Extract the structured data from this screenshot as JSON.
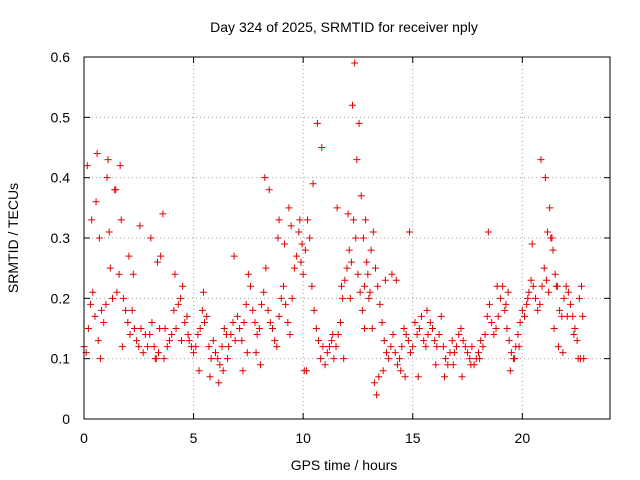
{
  "chart_data": {
    "type": "scatter",
    "title": "Day 324 of 2025, SRMTID for receiver nply",
    "xlabel": "GPS time / hours",
    "ylabel": "SRMTID / TECUs",
    "xlim": [
      0,
      24
    ],
    "ylim": [
      0,
      0.6
    ],
    "x_ticks": [
      0,
      5,
      10,
      15,
      20
    ],
    "x_tick_labels": [
      "0",
      "5",
      "10",
      "15",
      "20"
    ],
    "y_ticks": [
      0,
      0.1,
      0.2,
      0.3,
      0.4,
      0.5,
      0.6
    ],
    "y_tick_labels": [
      "0",
      "0.1",
      "0.2",
      "0.3",
      "0.4",
      "0.5",
      "0.6"
    ],
    "grid": true,
    "marker": "+",
    "series": [
      {
        "name": "SRMTID",
        "color": "#e00000",
        "x": [
          0.0,
          0.1,
          0.2,
          0.3,
          0.4,
          0.5,
          0.6,
          0.7,
          0.8,
          0.9,
          1.0,
          1.1,
          1.2,
          1.3,
          1.4,
          1.5,
          1.6,
          1.7,
          1.8,
          1.9,
          2.0,
          2.1,
          2.2,
          2.3,
          2.4,
          2.5,
          2.6,
          2.7,
          2.8,
          2.9,
          3.0,
          3.1,
          3.2,
          3.3,
          3.4,
          3.5,
          3.6,
          3.7,
          3.8,
          3.9,
          4.0,
          4.1,
          4.2,
          4.3,
          4.4,
          4.5,
          4.6,
          4.7,
          4.8,
          4.9,
          5.0,
          5.1,
          5.2,
          5.3,
          5.4,
          5.5,
          5.6,
          5.7,
          5.8,
          5.9,
          6.0,
          6.1,
          6.2,
          6.3,
          6.4,
          6.5,
          6.6,
          6.7,
          6.8,
          6.9,
          7.0,
          7.1,
          7.2,
          7.3,
          7.4,
          7.5,
          7.6,
          7.7,
          7.8,
          7.9,
          8.0,
          8.1,
          8.2,
          8.3,
          8.4,
          8.5,
          8.6,
          8.7,
          8.8,
          8.9,
          9.0,
          9.1,
          9.2,
          9.3,
          9.4,
          9.5,
          9.6,
          9.7,
          9.8,
          9.9,
          10.0,
          10.1,
          10.2,
          10.3,
          10.4,
          10.5,
          10.6,
          10.7,
          10.8,
          10.9,
          11.0,
          11.1,
          11.2,
          11.3,
          11.4,
          11.5,
          11.6,
          11.7,
          11.8,
          11.9,
          12.0,
          12.1,
          12.2,
          12.3,
          12.4,
          12.5,
          12.6,
          12.7,
          12.8,
          12.9,
          13.0,
          13.1,
          13.2,
          13.3,
          13.4,
          13.5,
          13.6,
          13.7,
          13.8,
          13.9,
          14.0,
          14.1,
          14.2,
          14.3,
          14.4,
          14.5,
          14.6,
          14.7,
          14.8,
          14.9,
          15.0,
          15.1,
          15.2,
          15.3,
          15.4,
          15.5,
          15.6,
          15.7,
          15.8,
          15.9,
          16.0,
          16.1,
          16.2,
          16.3,
          16.4,
          16.5,
          16.6,
          16.7,
          16.8,
          16.9,
          17.0,
          17.1,
          17.2,
          17.3,
          17.4,
          17.5,
          17.6,
          17.7,
          17.8,
          17.9,
          18.0,
          18.1,
          18.2,
          18.3,
          18.4,
          18.5,
          18.6,
          18.7,
          18.8,
          18.9,
          19.0,
          19.1,
          19.2,
          19.3,
          19.4,
          19.5,
          19.6,
          19.7,
          19.8,
          19.9,
          20.0,
          20.1,
          20.2,
          20.3,
          20.4,
          20.5,
          20.6,
          20.7,
          20.8,
          20.9,
          21.0,
          21.1,
          21.2,
          21.3,
          21.4,
          21.5,
          21.6,
          21.7,
          21.8,
          21.9,
          22.0,
          22.1,
          22.2,
          22.3,
          22.4,
          22.5,
          22.6,
          22.7,
          22.8,
          0.15,
          0.35,
          0.55,
          0.65,
          0.75,
          1.05,
          1.15,
          1.45,
          1.65,
          1.75,
          2.05,
          2.25,
          2.55,
          3.05,
          3.25,
          3.35,
          3.45,
          3.65,
          4.15,
          4.45,
          4.75,
          5.25,
          5.45,
          5.75,
          6.15,
          6.35,
          6.55,
          6.85,
          7.25,
          7.45,
          7.85,
          8.05,
          8.25,
          8.45,
          8.85,
          8.9,
          9.15,
          9.35,
          9.45,
          9.85,
          9.95,
          10.05,
          10.15,
          10.45,
          10.65,
          10.85,
          11.35,
          11.55,
          11.75,
          11.85,
          12.05,
          12.15,
          12.25,
          12.35,
          12.45,
          12.55,
          12.65,
          12.75,
          12.8,
          12.85,
          12.95,
          13.05,
          13.15,
          13.25,
          13.35,
          13.45,
          13.65,
          13.75,
          14.05,
          14.25,
          14.45,
          14.65,
          14.85,
          15.25,
          15.65,
          16.05,
          16.45,
          16.85,
          17.25,
          17.65,
          18.05,
          18.45,
          18.85,
          19.25,
          19.35,
          19.45,
          19.65,
          19.85,
          20.25,
          20.45,
          20.85,
          21.05,
          21.15,
          21.25,
          21.35,
          21.45,
          21.55,
          21.65,
          21.85,
          22.05,
          22.35,
          22.55,
          22.65,
          22.75
        ],
        "y": [
          0.12,
          0.11,
          0.15,
          0.19,
          0.21,
          0.17,
          0.44,
          0.3,
          0.18,
          0.16,
          0.19,
          0.43,
          0.25,
          0.2,
          0.38,
          0.21,
          0.24,
          0.33,
          0.2,
          0.18,
          0.16,
          0.14,
          0.18,
          0.15,
          0.13,
          0.12,
          0.15,
          0.11,
          0.14,
          0.12,
          0.14,
          0.16,
          0.12,
          0.1,
          0.11,
          0.27,
          0.34,
          0.15,
          0.12,
          0.13,
          0.14,
          0.18,
          0.15,
          0.19,
          0.2,
          0.22,
          0.16,
          0.17,
          0.13,
          0.12,
          0.11,
          0.12,
          0.14,
          0.15,
          0.18,
          0.16,
          0.17,
          0.12,
          0.1,
          0.13,
          0.11,
          0.1,
          0.09,
          0.12,
          0.15,
          0.14,
          0.12,
          0.14,
          0.16,
          0.13,
          0.17,
          0.15,
          0.13,
          0.16,
          0.19,
          0.24,
          0.22,
          0.18,
          0.16,
          0.14,
          0.15,
          0.19,
          0.21,
          0.25,
          0.18,
          0.16,
          0.15,
          0.13,
          0.12,
          0.17,
          0.2,
          0.22,
          0.19,
          0.16,
          0.14,
          0.2,
          0.25,
          0.27,
          0.31,
          0.26,
          0.24,
          0.28,
          0.33,
          0.3,
          0.22,
          0.18,
          0.15,
          0.13,
          0.1,
          0.12,
          0.09,
          0.11,
          0.12,
          0.13,
          0.1,
          0.12,
          0.14,
          0.16,
          0.2,
          0.23,
          0.25,
          0.28,
          0.26,
          0.33,
          0.3,
          0.24,
          0.21,
          0.18,
          0.22,
          0.26,
          0.2,
          0.28,
          0.31,
          0.25,
          0.22,
          0.19,
          0.16,
          0.13,
          0.11,
          0.1,
          0.12,
          0.14,
          0.11,
          0.09,
          0.1,
          0.12,
          0.15,
          0.14,
          0.13,
          0.11,
          0.12,
          0.16,
          0.14,
          0.15,
          0.17,
          0.13,
          0.12,
          0.14,
          0.16,
          0.15,
          0.13,
          0.12,
          0.14,
          0.17,
          0.12,
          0.1,
          0.09,
          0.11,
          0.13,
          0.11,
          0.12,
          0.14,
          0.15,
          0.13,
          0.12,
          0.11,
          0.1,
          0.12,
          0.09,
          0.1,
          0.11,
          0.13,
          0.12,
          0.14,
          0.17,
          0.19,
          0.16,
          0.14,
          0.15,
          0.17,
          0.2,
          0.22,
          0.18,
          0.15,
          0.13,
          0.11,
          0.1,
          0.12,
          0.14,
          0.16,
          0.18,
          0.17,
          0.19,
          0.21,
          0.23,
          0.22,
          0.2,
          0.18,
          0.19,
          0.22,
          0.25,
          0.23,
          0.21,
          0.3,
          0.28,
          0.24,
          0.22,
          0.18,
          0.17,
          0.2,
          0.22,
          0.21,
          0.19,
          0.17,
          0.15,
          0.13,
          0.2,
          0.22,
          0.1,
          0.42,
          0.33,
          0.36,
          0.13,
          0.1,
          0.4,
          0.31,
          0.38,
          0.42,
          0.12,
          0.27,
          0.24,
          0.32,
          0.3,
          0.1,
          0.26,
          0.15,
          0.1,
          0.24,
          0.13,
          0.14,
          0.08,
          0.21,
          0.07,
          0.06,
          0.08,
          0.1,
          0.27,
          0.08,
          0.11,
          0.11,
          0.09,
          0.4,
          0.38,
          0.3,
          0.33,
          0.29,
          0.35,
          0.32,
          0.33,
          0.29,
          0.08,
          0.08,
          0.39,
          0.49,
          0.45,
          0.14,
          0.35,
          0.22,
          0.1,
          0.34,
          0.2,
          0.52,
          0.59,
          0.43,
          0.49,
          0.37,
          0.3,
          0.15,
          0.33,
          0.24,
          0.21,
          0.15,
          0.06,
          0.04,
          0.07,
          0.08,
          0.23,
          0.24,
          0.23,
          0.08,
          0.07,
          0.31,
          0.07,
          0.18,
          0.09,
          0.07,
          0.09,
          0.07,
          0.09,
          0.1,
          0.31,
          0.22,
          0.19,
          0.21,
          0.08,
          0.1,
          0.12,
          0.2,
          0.29,
          0.43,
          0.4,
          0.31,
          0.35,
          0.3,
          0.15,
          0.22,
          0.12,
          0.11,
          0.17,
          0.14,
          0.1,
          0.1,
          0.17
        ]
      }
    ]
  }
}
